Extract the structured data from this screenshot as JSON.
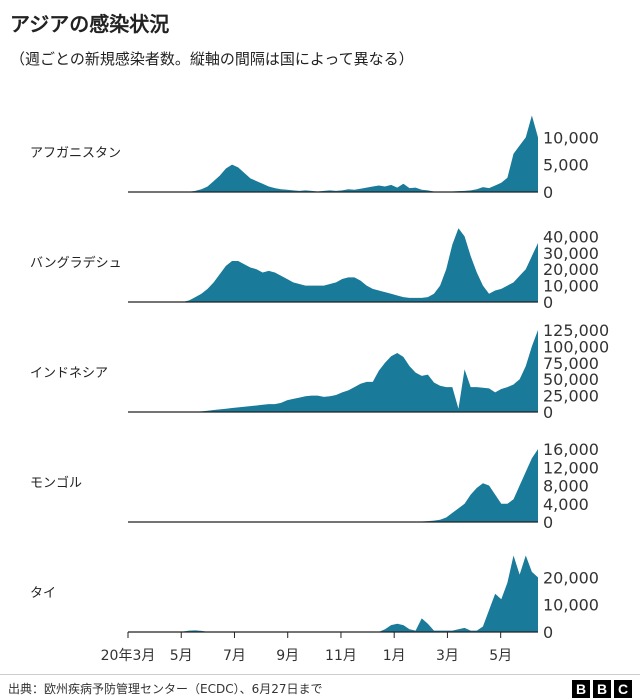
{
  "header": {
    "title": "アジアの感染状況",
    "subtitle": "（週ごとの新規感染者数。縦軸の間隔は国によって異なる）"
  },
  "footer": {
    "source": "出典：欧州疾病予防管理センター（ECDC）、6月27日まで",
    "logo_letters": [
      "B",
      "B",
      "C"
    ]
  },
  "style": {
    "area_color": "#1a7a9a",
    "baseline_color": "#222222"
  },
  "chart_data": {
    "type": "area",
    "x_tick_labels": [
      "20年3月",
      "5月",
      "7月",
      "9月",
      "11月",
      "1月",
      "3月",
      "5月"
    ],
    "x_tick_positions_weeks": [
      0,
      8.7,
      17.4,
      26.1,
      34.8,
      43.5,
      52.2,
      60.9
    ],
    "weeks_total": 68,
    "panels": [
      {
        "name": "アフガニスタン",
        "ylim": [
          0,
          15000
        ],
        "yticks": [
          0,
          5000,
          10000
        ],
        "ytick_labels": [
          "0",
          "5,000",
          "10,000"
        ],
        "values": [
          0,
          0,
          0,
          0,
          0,
          0,
          0,
          0,
          0,
          0,
          50,
          200,
          500,
          1000,
          2000,
          3000,
          4300,
          5000,
          4500,
          3500,
          2500,
          2000,
          1500,
          1000,
          700,
          500,
          400,
          300,
          200,
          300,
          200,
          100,
          200,
          300,
          200,
          300,
          500,
          400,
          600,
          800,
          1000,
          1200,
          1000,
          1300,
          800,
          1500,
          700,
          800,
          400,
          300,
          100,
          50,
          50,
          100,
          150,
          200,
          300,
          500,
          900,
          700,
          1200,
          1700,
          2600,
          7000,
          8500,
          10000,
          14000,
          10000
        ]
      },
      {
        "name": "バングラデシュ",
        "ylim": [
          0,
          50000
        ],
        "yticks": [
          0,
          10000,
          20000,
          30000,
          40000
        ],
        "ytick_labels": [
          "0",
          "10,000",
          "20,000",
          "30,000",
          "40,000"
        ],
        "values": [
          0,
          0,
          0,
          0,
          0,
          0,
          0,
          0,
          0,
          100,
          1000,
          3000,
          5000,
          8000,
          12000,
          17000,
          22000,
          25000,
          25000,
          23000,
          21000,
          20000,
          18000,
          19000,
          18000,
          16000,
          14000,
          12000,
          11000,
          10000,
          10000,
          10000,
          10000,
          11000,
          12000,
          14000,
          15000,
          15000,
          13000,
          10000,
          8000,
          7000,
          6000,
          5000,
          4000,
          3000,
          2500,
          2500,
          2500,
          3000,
          5000,
          10000,
          20000,
          35000,
          45000,
          40000,
          28000,
          18000,
          10000,
          5000,
          7000,
          8000,
          10000,
          12000,
          16000,
          20000,
          28000,
          36000
        ]
      },
      {
        "name": "インドネシア",
        "ylim": [
          0,
          125000
        ],
        "yticks": [
          0,
          25000,
          50000,
          75000,
          100000,
          125000
        ],
        "ytick_labels": [
          "0",
          "25,000",
          "50,000",
          "75,000",
          "100,000",
          "125,000"
        ],
        "values": [
          0,
          0,
          0,
          0,
          0,
          0,
          0,
          0,
          0,
          0,
          200,
          500,
          1000,
          2000,
          3000,
          4000,
          5000,
          6000,
          7000,
          8000,
          9000,
          10000,
          11000,
          12000,
          12000,
          14000,
          18000,
          20000,
          22000,
          24000,
          25000,
          25000,
          23000,
          24000,
          26000,
          30000,
          33000,
          38000,
          43000,
          46000,
          46000,
          63000,
          75000,
          85000,
          90000,
          84000,
          70000,
          60000,
          55000,
          57000,
          45000,
          40000,
          38000,
          38000,
          5000,
          65000,
          38000,
          38000,
          37000,
          36000,
          30000,
          35000,
          38000,
          42000,
          50000,
          70000,
          100000,
          125000
        ]
      },
      {
        "name": "モンゴル",
        "ylim": [
          0,
          18000
        ],
        "yticks": [
          0,
          4000,
          8000,
          12000,
          16000
        ],
        "ytick_labels": [
          "0",
          "4,000",
          "8,000",
          "12,000",
          "16,000"
        ],
        "values": [
          0,
          0,
          0,
          0,
          0,
          0,
          0,
          0,
          0,
          0,
          0,
          0,
          0,
          0,
          0,
          0,
          0,
          0,
          0,
          0,
          0,
          0,
          0,
          0,
          0,
          0,
          0,
          0,
          0,
          0,
          0,
          0,
          0,
          0,
          0,
          0,
          0,
          0,
          0,
          0,
          0,
          0,
          0,
          0,
          0,
          0,
          0,
          50,
          100,
          200,
          300,
          500,
          1000,
          2000,
          3000,
          4000,
          6000,
          7500,
          8500,
          8000,
          6000,
          4000,
          4000,
          5000,
          8000,
          11000,
          14000,
          16000
        ]
      },
      {
        "name": "タイ",
        "ylim": [
          0,
          30000
        ],
        "yticks": [
          0,
          10000,
          20000
        ],
        "ytick_labels": [
          "0",
          "10,000",
          "20,000"
        ],
        "values": [
          0,
          0,
          0,
          0,
          0,
          0,
          0,
          0,
          0,
          200,
          500,
          600,
          400,
          100,
          50,
          50,
          50,
          50,
          50,
          50,
          50,
          50,
          50,
          50,
          50,
          50,
          50,
          50,
          50,
          50,
          50,
          50,
          50,
          50,
          50,
          50,
          50,
          50,
          50,
          50,
          50,
          50,
          1000,
          2500,
          3000,
          2500,
          1000,
          500,
          5000,
          3000,
          500,
          500,
          500,
          500,
          1000,
          1500,
          500,
          500,
          2000,
          8000,
          14000,
          12000,
          18000,
          28000,
          21000,
          28000,
          22000,
          20000
        ]
      }
    ]
  }
}
